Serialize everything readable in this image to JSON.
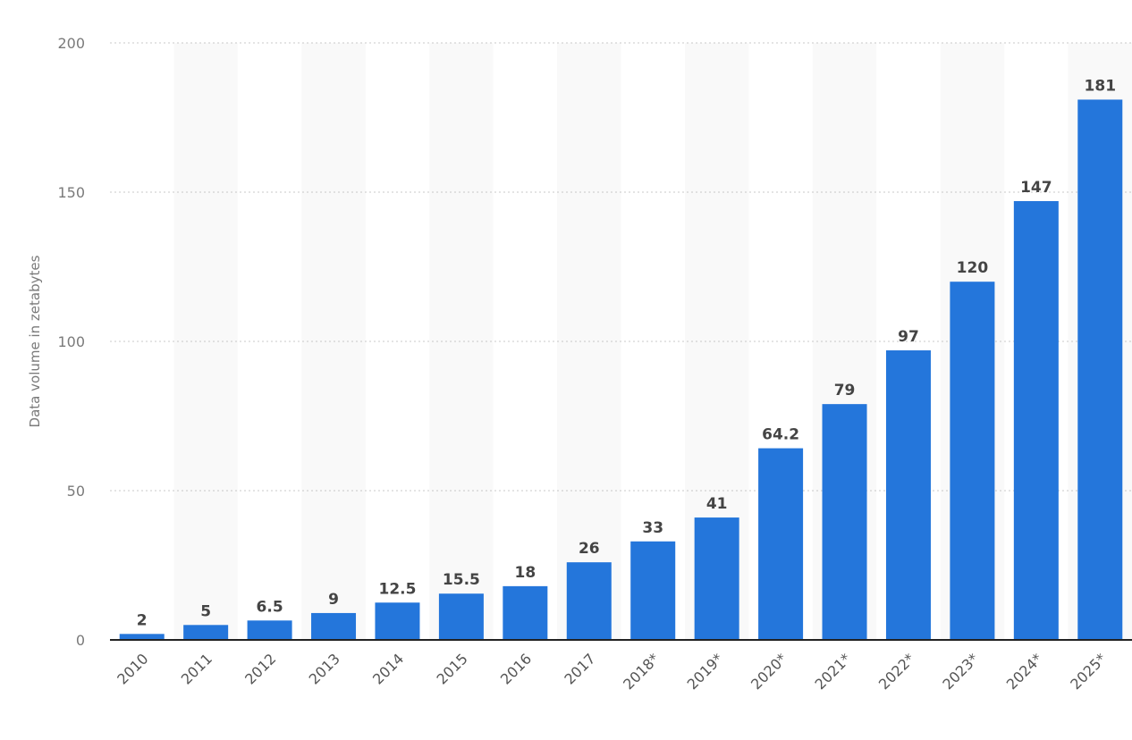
{
  "chart_data": {
    "type": "bar",
    "title": "",
    "xlabel": "",
    "ylabel": "Data volume in zetabytes",
    "ylim": [
      0,
      200
    ],
    "yticks": [
      0,
      50,
      100,
      150,
      200
    ],
    "grid": true,
    "categories": [
      "2010",
      "2011",
      "2012",
      "2013",
      "2014",
      "2015",
      "2016",
      "2017",
      "2018*",
      "2019*",
      "2020*",
      "2021*",
      "2022*",
      "2023*",
      "2024*",
      "2025*"
    ],
    "values": [
      2,
      5,
      6.5,
      9,
      12.5,
      15.5,
      18,
      26,
      33,
      41,
      64.2,
      79,
      97,
      120,
      147,
      181
    ],
    "data_labels": [
      "2",
      "5",
      "6.5",
      "9",
      "12.5",
      "15.5",
      "18",
      "26",
      "33",
      "41",
      "64.2",
      "79",
      "97",
      "120",
      "147",
      "181"
    ],
    "colors": {
      "bar": "#2476db",
      "band": "#f9f9f9",
      "grid": "#c8c8c8",
      "axis": "#222222"
    }
  }
}
